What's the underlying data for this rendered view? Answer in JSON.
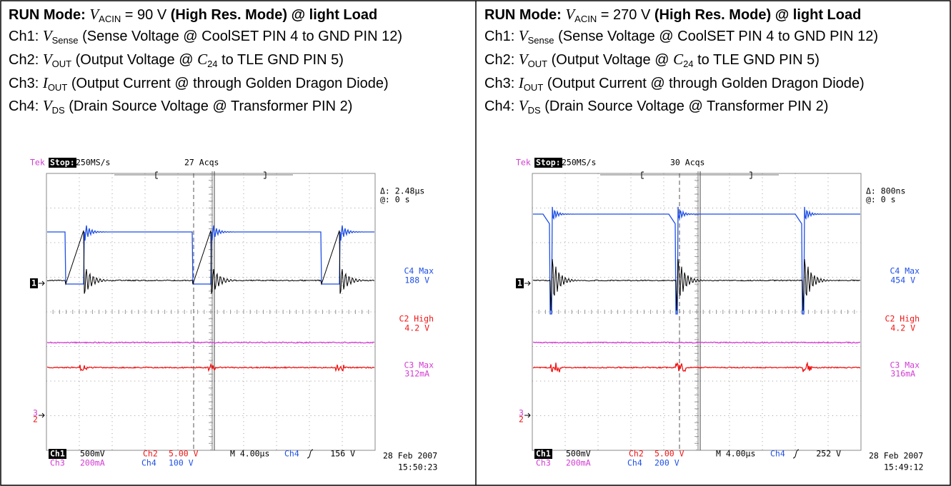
{
  "panels": [
    {
      "heading": [
        "RUN Mode",
        ": ",
        "V",
        "ACIN",
        " = 90 V ",
        "(High Res. Mode) @ light Load"
      ],
      "lines": [
        [
          "Ch1: ",
          "V",
          "Sense",
          " (Sense Voltage @ CoolSET PIN 4 to GND PIN 12)"
        ],
        [
          "Ch2: ",
          "V",
          "OUT",
          " (Output Voltage @ ",
          "C",
          "24",
          " to TLE GND PIN 5)"
        ],
        [
          "Ch3: ",
          "I",
          "OUT",
          " (Output Current @ through Golden Dragon Diode)"
        ],
        [
          "Ch4: ",
          "V",
          "DS",
          " (Drain Source Voltage @ Transformer PIN 2)"
        ]
      ],
      "scope": {
        "brand": "Tek",
        "state": "Stop:",
        "rate": "250MS/s",
        "acqs": "27 Acqs",
        "delta": "Δ: 2.48µs",
        "at": "@: 0 s",
        "readouts": [
          {
            "name": "C4 Max",
            "value": "188 V"
          },
          {
            "name": "C2 High",
            "value": "4.2 V"
          },
          {
            "name": "C3 Max",
            "value": "312mA"
          }
        ],
        "ch1": "Ch1",
        "ch1_scale": "500mV",
        "ch2": "Ch2",
        "ch2_scale": "5.00 V",
        "timebase": "M 4.00µs",
        "trigger_source": "Ch4",
        "trigger_level": "156 V",
        "ch3": "Ch3",
        "ch3_scale": "200mA",
        "ch4": "Ch4",
        "ch4_scale": "100 V",
        "date": "28 Feb 2007",
        "time": "15:50:23",
        "marker1": "1",
        "marker3": "3",
        "marker2": "2"
      }
    },
    {
      "heading": [
        "RUN Mode",
        ": ",
        "V",
        "ACIN",
        " = 270 V ",
        "(High Res. Mode) @ light Load"
      ],
      "lines": [
        [
          "Ch1: ",
          "V",
          "Sense",
          " (Sense Voltage @ CoolSET PIN 4 to GND PIN 12)"
        ],
        [
          "Ch2: ",
          "V",
          "OUT",
          " (Output Voltage @ ",
          "C",
          "24",
          " to TLE GND PIN 5)"
        ],
        [
          "Ch3: ",
          "I",
          "OUT",
          " (Output Current @ through Golden Dragon Diode)"
        ],
        [
          "Ch4: ",
          "V",
          "DS",
          " (Drain Source Voltage @ Transformer PIN 2)"
        ]
      ],
      "scope": {
        "brand": "Tek",
        "state": "Stop:",
        "rate": "250MS/s",
        "acqs": "30 Acqs",
        "delta": "Δ: 800ns",
        "at": "@: 0 s",
        "readouts": [
          {
            "name": "C4 Max",
            "value": "454 V"
          },
          {
            "name": "C2 High",
            "value": "4.2 V"
          },
          {
            "name": "C3 Max",
            "value": "316mA"
          }
        ],
        "ch1": "Ch1",
        "ch1_scale": "500mV",
        "ch2": "Ch2",
        "ch2_scale": "5.00 V",
        "timebase": "M 4.00µs",
        "trigger_source": "Ch4",
        "trigger_level": "252 V",
        "ch3": "Ch3",
        "ch3_scale": "200mA",
        "ch4": "Ch4",
        "ch4_scale": "200 V",
        "date": "28 Feb 2007",
        "time": "15:49:12",
        "marker1": "1",
        "marker3": "3",
        "marker2": "2"
      }
    }
  ]
}
